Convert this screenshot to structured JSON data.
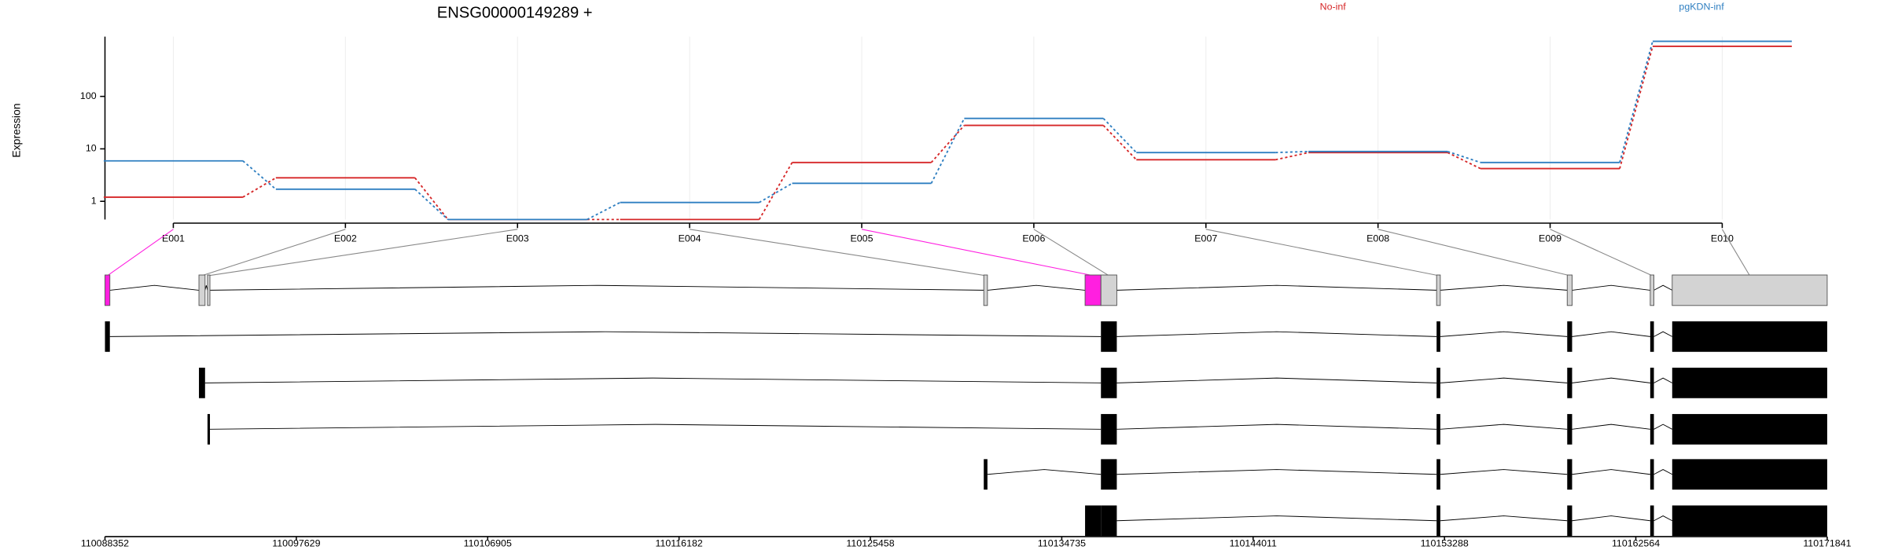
{
  "chart_data": {
    "type": "exon_usage",
    "title": "ENSG00000149289 +",
    "y_label": "Expression",
    "log_scale": true,
    "grid": true,
    "ylim": [
      0.45,
      1380
    ],
    "yticks": [
      1,
      10,
      100
    ],
    "categories": [
      "E001",
      "E002",
      "E003",
      "E004",
      "E005",
      "E006",
      "E007",
      "E008",
      "E009",
      "E010"
    ],
    "series": [
      {
        "name": "No-inf",
        "color": "#d62728",
        "values": [
          1.2,
          2.8,
          0.45,
          0.45,
          5.5,
          28,
          6.2,
          8.5,
          4.2,
          900
        ]
      },
      {
        "name": "pgKDN-inf",
        "color": "#2f7fc1",
        "values": [
          5.9,
          1.7,
          0.45,
          0.95,
          2.2,
          38,
          8.5,
          8.9,
          5.5,
          1120
        ]
      }
    ],
    "xlim": [
      110088352,
      110171841
    ],
    "xticks": [
      110088352,
      110097629,
      110106905,
      110116182,
      110125458,
      110134735,
      110144011,
      110153288,
      110162564,
      110171841
    ],
    "exon_ranges": [
      [
        110088352,
        110088589
      ],
      [
        110092908,
        110093204
      ],
      [
        110093322,
        110093441
      ],
      [
        110130954,
        110131132
      ],
      [
        110135865,
        110136634
      ],
      [
        110136634,
        110137403
      ],
      [
        110152906,
        110153085
      ],
      [
        110159238,
        110159475
      ],
      [
        110163262,
        110163440
      ],
      [
        110164327,
        110171841
      ]
    ],
    "highlighted_exons": [
      0,
      4
    ],
    "highlight_color": "#ff1fe0",
    "bin_color": "#d3d3d3",
    "transcript_color": "#000000",
    "transcripts": [
      [
        0,
        5,
        6,
        7,
        8,
        9
      ],
      [
        1,
        5,
        6,
        7,
        8,
        9
      ],
      [
        2,
        5,
        6,
        7,
        8,
        9
      ],
      [
        3,
        5,
        6,
        7,
        8,
        9
      ],
      [
        4,
        5,
        6,
        7,
        8,
        9
      ]
    ]
  }
}
